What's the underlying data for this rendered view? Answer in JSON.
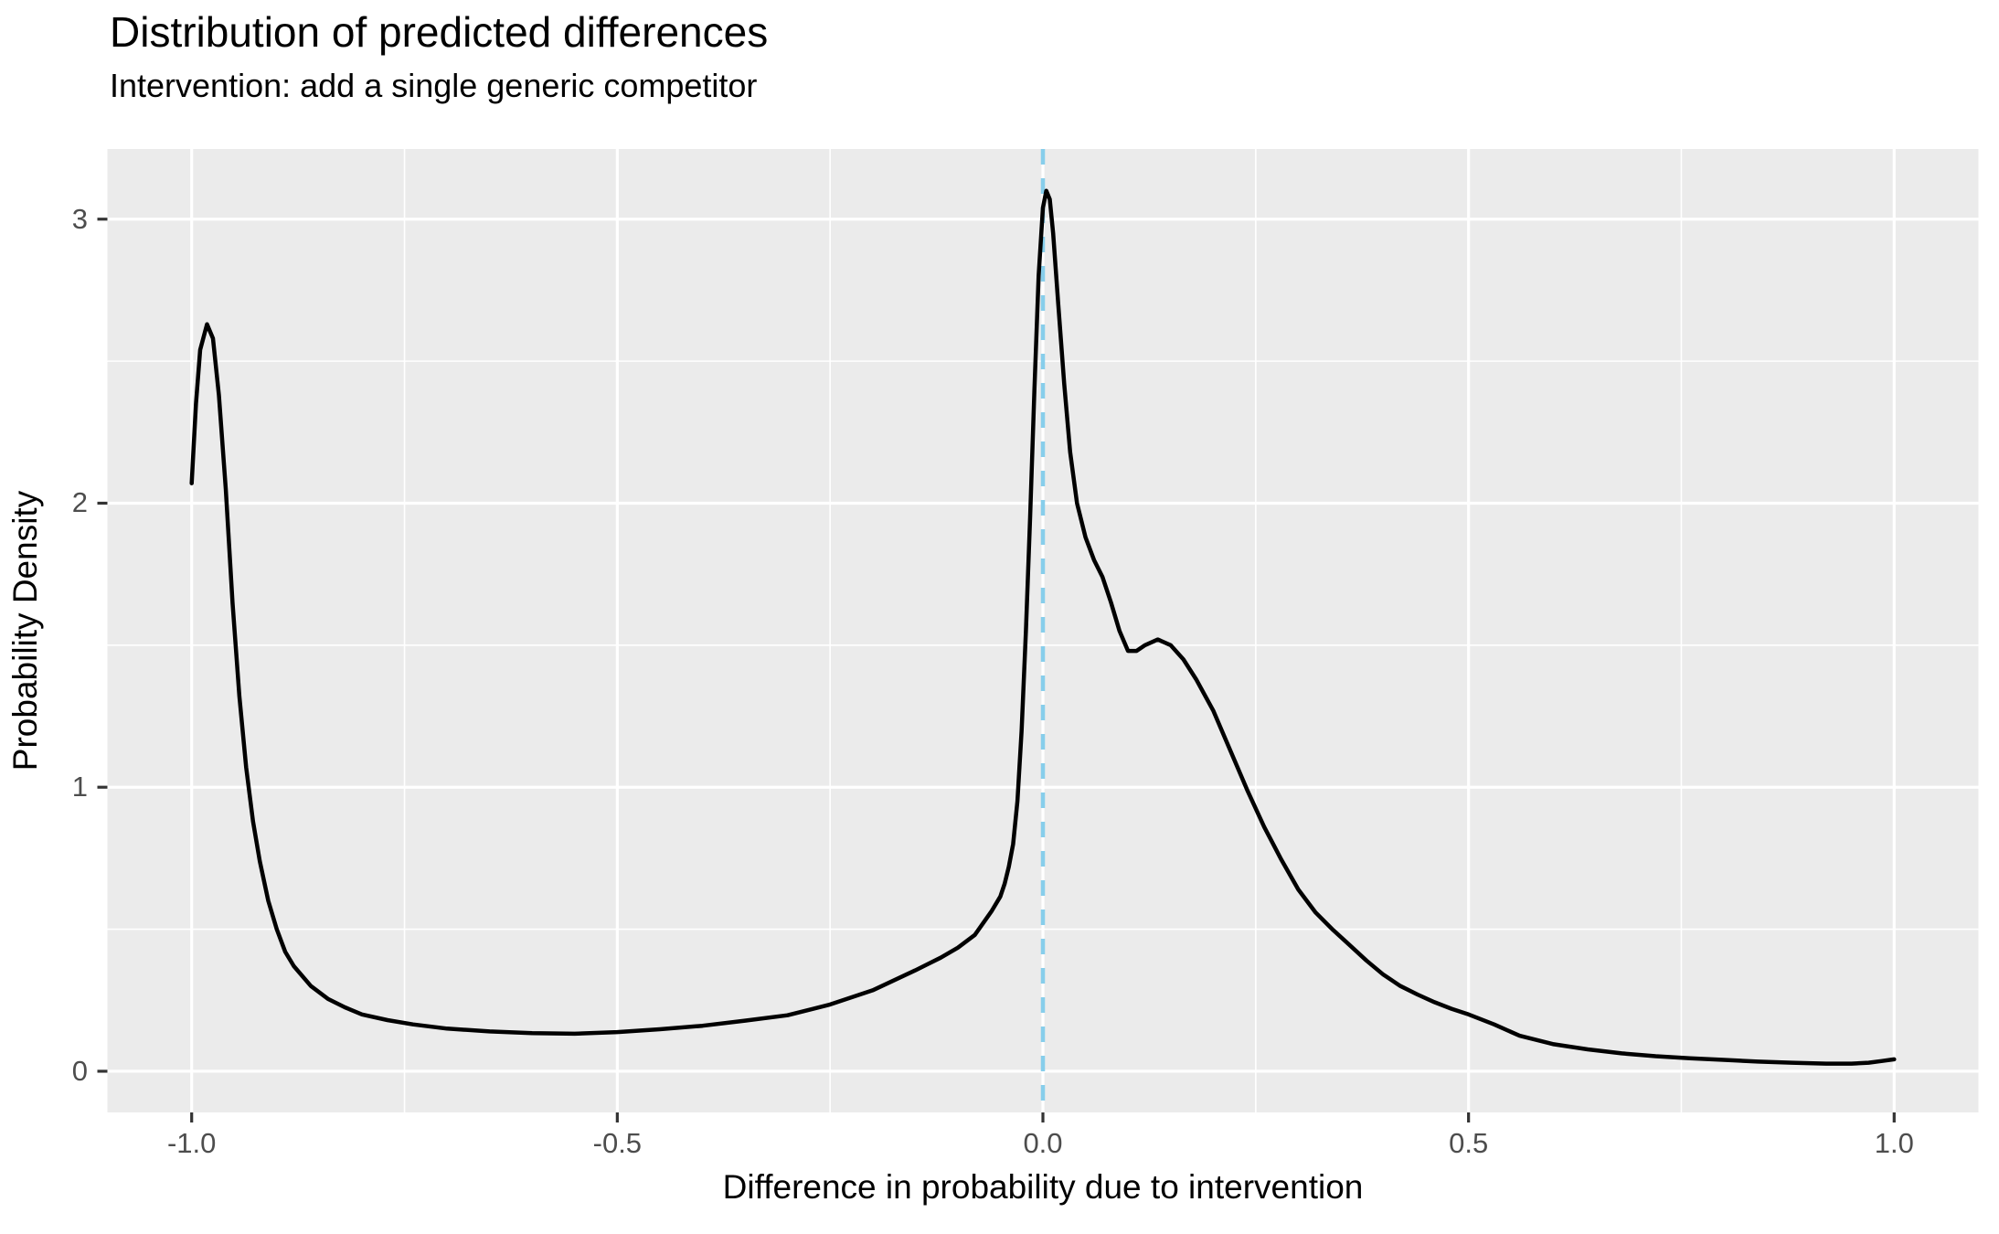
{
  "figure": {
    "background_color": "#FFFFFF",
    "panel_background_color": "#EBEBEB",
    "gridline_color": "#FFFFFF",
    "tick_mark_color": "#333333",
    "tick_label_color": "#4D4D4D",
    "text_color": "#000000"
  },
  "chart_data": {
    "type": "line",
    "title": "Distribution of predicted differences",
    "subtitle": "Intervention: add a single generic competitor",
    "xlabel": "Difference in probability due to intervention",
    "ylabel": "Probability Density",
    "xlim": [
      -1.099,
      1.099
    ],
    "ylim": [
      -0.145,
      3.247
    ],
    "x_ticks": [
      -1.0,
      -0.5,
      0.0,
      0.5,
      1.0
    ],
    "x_tick_labels": [
      "-1.0",
      "-0.5",
      "0.0",
      "0.5",
      "1.0"
    ],
    "y_ticks": [
      0,
      1,
      2,
      3
    ],
    "y_tick_labels": [
      "0",
      "1",
      "2",
      "3"
    ],
    "x_minor_gridlines": [
      -0.75,
      -0.25,
      0.25,
      0.75
    ],
    "y_minor_gridlines": [
      0.5,
      1.5,
      2.5
    ],
    "grid": true,
    "legend_position": "none",
    "reference_line": {
      "orientation": "vertical",
      "x": 0.0,
      "style": "dashed",
      "color": "#87CEEB",
      "width": 4.5,
      "dash": [
        17,
        15
      ]
    },
    "series": [
      {
        "name": "density",
        "color": "#000000",
        "width": 4.5,
        "points": [
          [
            -1.0,
            2.07
          ],
          [
            -0.995,
            2.35
          ],
          [
            -0.99,
            2.54
          ],
          [
            -0.982,
            2.63
          ],
          [
            -0.975,
            2.58
          ],
          [
            -0.968,
            2.38
          ],
          [
            -0.96,
            2.05
          ],
          [
            -0.952,
            1.65
          ],
          [
            -0.944,
            1.32
          ],
          [
            -0.936,
            1.07
          ],
          [
            -0.928,
            0.88
          ],
          [
            -0.92,
            0.74
          ],
          [
            -0.91,
            0.6
          ],
          [
            -0.9,
            0.5
          ],
          [
            -0.89,
            0.42
          ],
          [
            -0.88,
            0.37
          ],
          [
            -0.86,
            0.3
          ],
          [
            -0.84,
            0.255
          ],
          [
            -0.82,
            0.225
          ],
          [
            -0.8,
            0.2
          ],
          [
            -0.77,
            0.18
          ],
          [
            -0.74,
            0.165
          ],
          [
            -0.7,
            0.15
          ],
          [
            -0.65,
            0.14
          ],
          [
            -0.6,
            0.134
          ],
          [
            -0.55,
            0.132
          ],
          [
            -0.5,
            0.138
          ],
          [
            -0.45,
            0.148
          ],
          [
            -0.4,
            0.16
          ],
          [
            -0.35,
            0.178
          ],
          [
            -0.3,
            0.197
          ],
          [
            -0.25,
            0.235
          ],
          [
            -0.2,
            0.285
          ],
          [
            -0.15,
            0.355
          ],
          [
            -0.12,
            0.4
          ],
          [
            -0.1,
            0.435
          ],
          [
            -0.08,
            0.48
          ],
          [
            -0.06,
            0.565
          ],
          [
            -0.05,
            0.615
          ],
          [
            -0.045,
            0.66
          ],
          [
            -0.04,
            0.72
          ],
          [
            -0.035,
            0.8
          ],
          [
            -0.03,
            0.95
          ],
          [
            -0.025,
            1.2
          ],
          [
            -0.02,
            1.55
          ],
          [
            -0.015,
            1.95
          ],
          [
            -0.01,
            2.4
          ],
          [
            -0.005,
            2.8
          ],
          [
            0.0,
            3.04
          ],
          [
            0.004,
            3.1
          ],
          [
            0.008,
            3.07
          ],
          [
            0.012,
            2.95
          ],
          [
            0.018,
            2.7
          ],
          [
            0.025,
            2.42
          ],
          [
            0.032,
            2.18
          ],
          [
            0.04,
            2.0
          ],
          [
            0.05,
            1.88
          ],
          [
            0.06,
            1.8
          ],
          [
            0.07,
            1.74
          ],
          [
            0.08,
            1.65
          ],
          [
            0.09,
            1.55
          ],
          [
            0.1,
            1.48
          ],
          [
            0.11,
            1.48
          ],
          [
            0.12,
            1.5
          ],
          [
            0.135,
            1.52
          ],
          [
            0.15,
            1.5
          ],
          [
            0.165,
            1.45
          ],
          [
            0.18,
            1.38
          ],
          [
            0.2,
            1.27
          ],
          [
            0.22,
            1.13
          ],
          [
            0.24,
            0.99
          ],
          [
            0.26,
            0.86
          ],
          [
            0.28,
            0.745
          ],
          [
            0.3,
            0.64
          ],
          [
            0.32,
            0.56
          ],
          [
            0.34,
            0.5
          ],
          [
            0.36,
            0.445
          ],
          [
            0.38,
            0.39
          ],
          [
            0.4,
            0.34
          ],
          [
            0.42,
            0.3
          ],
          [
            0.44,
            0.27
          ],
          [
            0.46,
            0.243
          ],
          [
            0.48,
            0.22
          ],
          [
            0.5,
            0.2
          ],
          [
            0.53,
            0.165
          ],
          [
            0.56,
            0.125
          ],
          [
            0.6,
            0.095
          ],
          [
            0.64,
            0.077
          ],
          [
            0.68,
            0.063
          ],
          [
            0.72,
            0.053
          ],
          [
            0.76,
            0.046
          ],
          [
            0.8,
            0.04
          ],
          [
            0.84,
            0.034
          ],
          [
            0.88,
            0.03
          ],
          [
            0.92,
            0.027
          ],
          [
            0.95,
            0.027
          ],
          [
            0.97,
            0.03
          ],
          [
            0.985,
            0.036
          ],
          [
            1.0,
            0.042
          ]
        ]
      }
    ]
  }
}
